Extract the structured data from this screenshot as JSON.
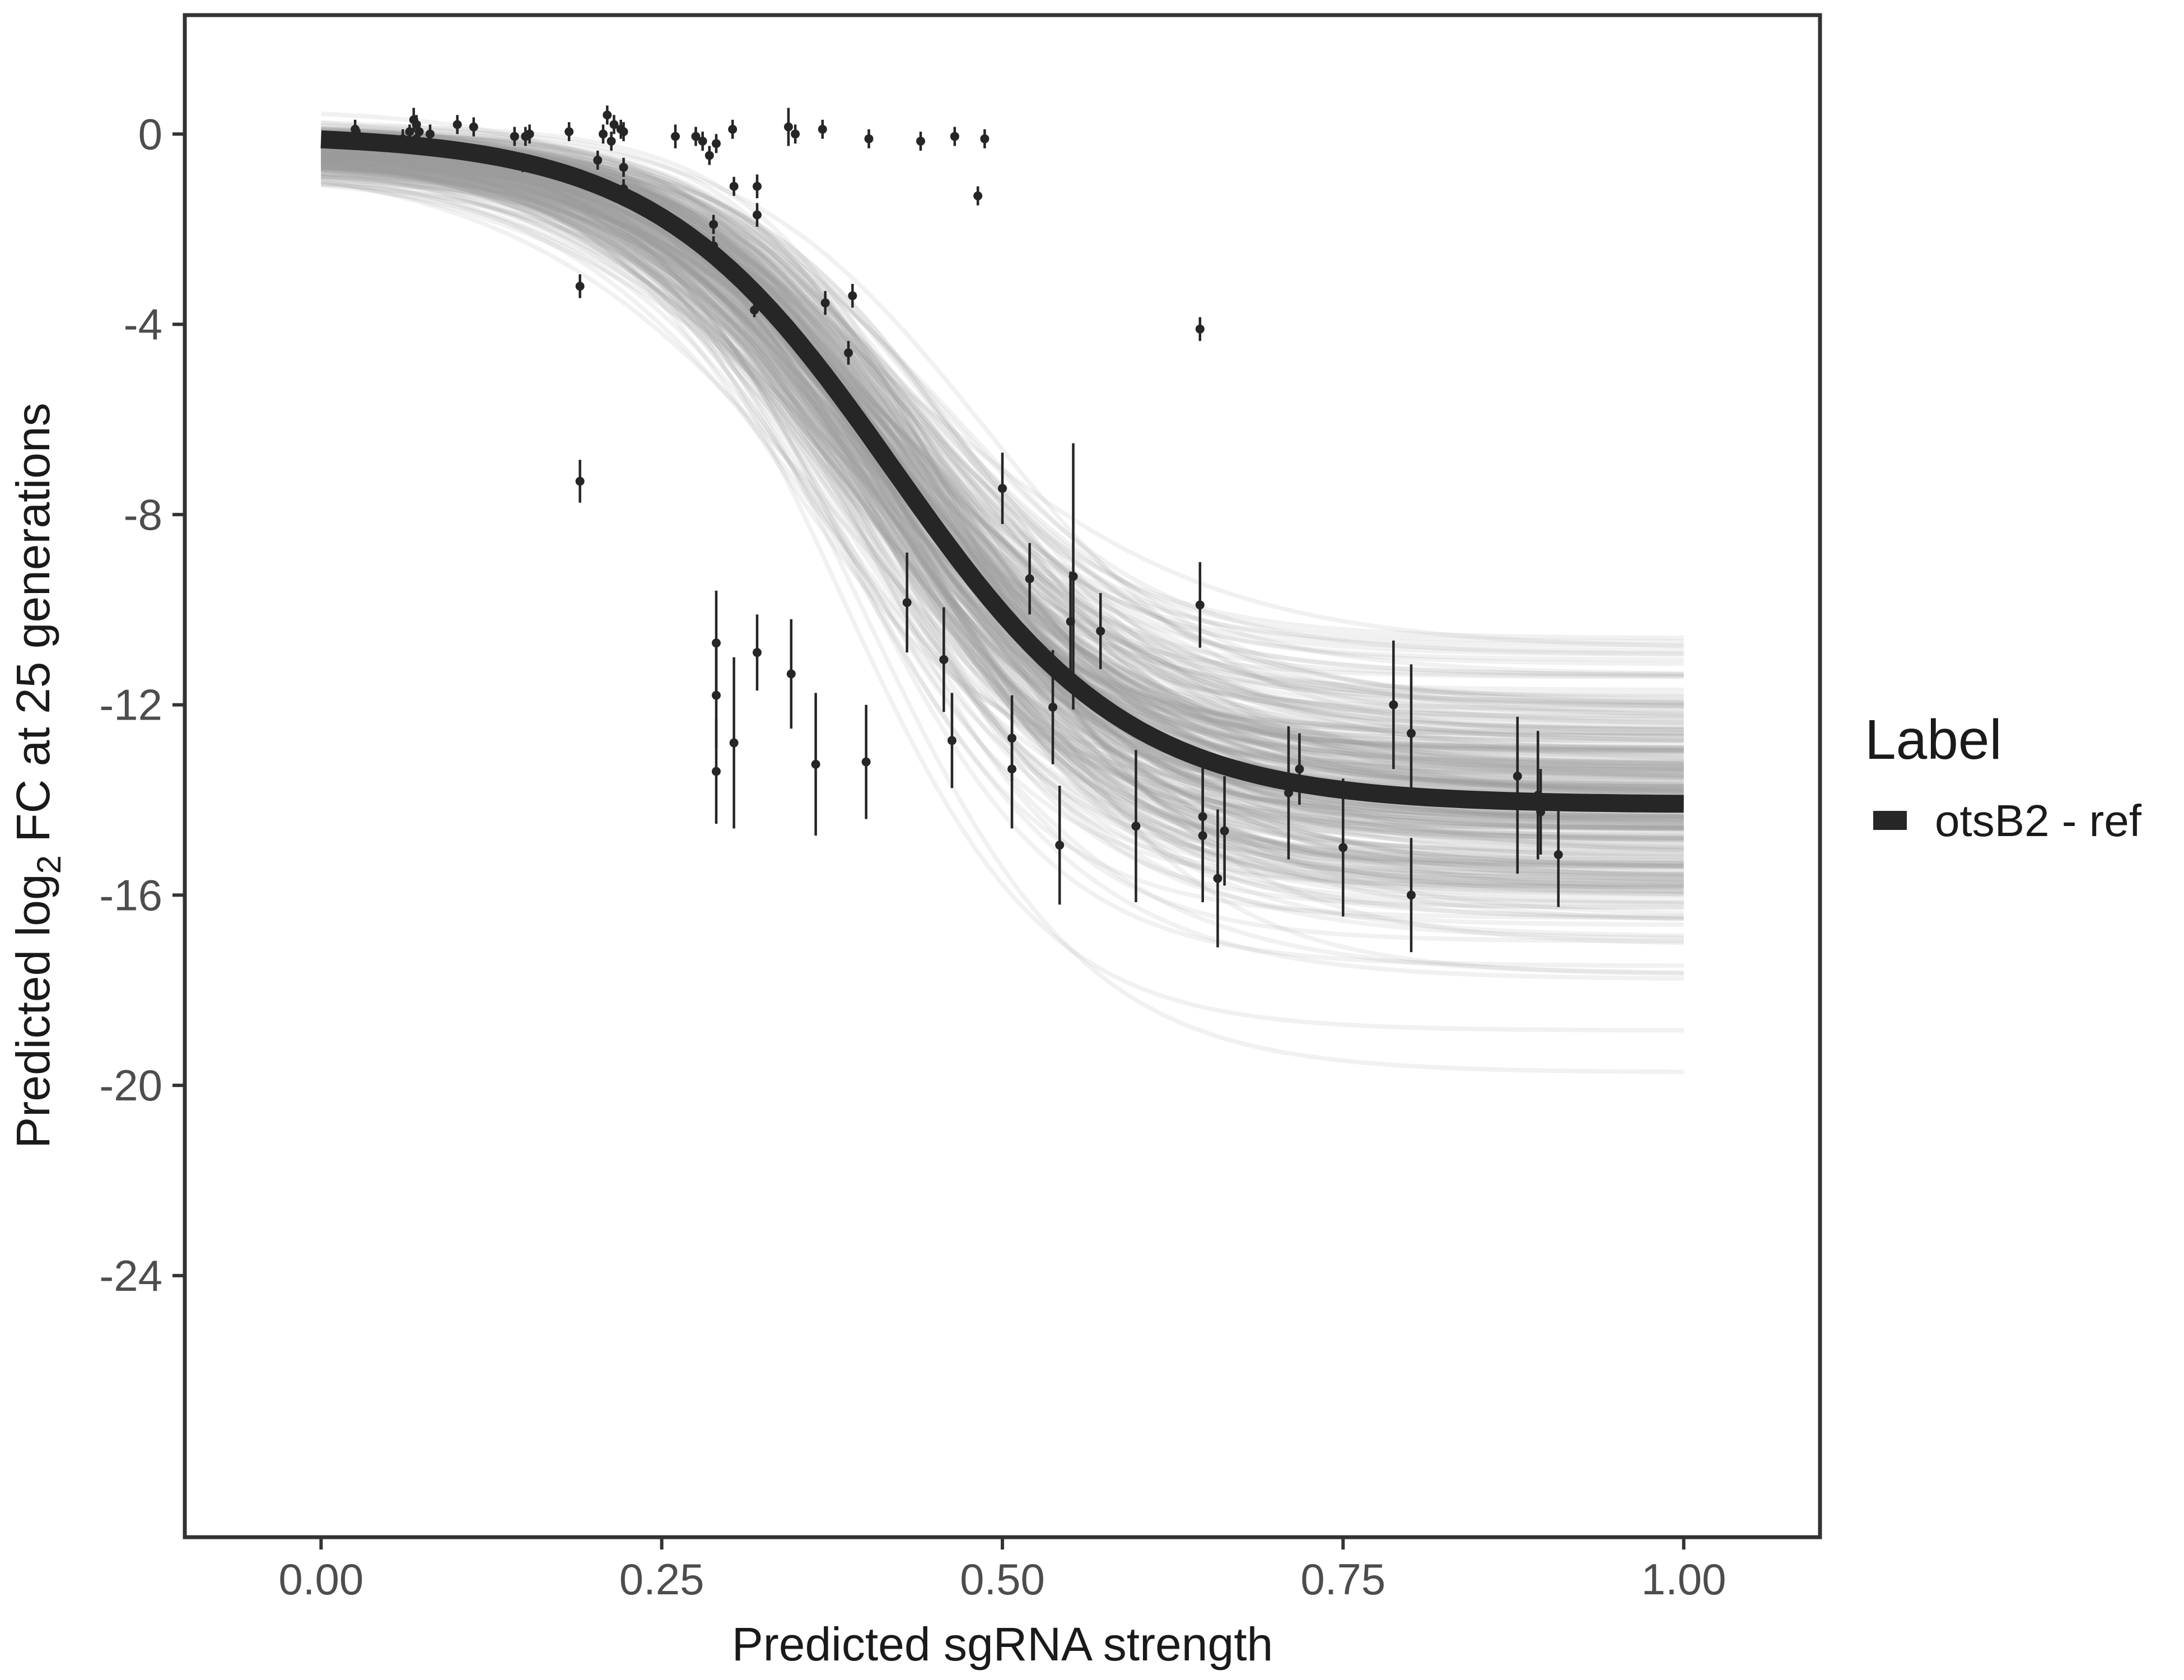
{
  "chart_data": {
    "type": "line",
    "title": "",
    "xlabel": "Predicted sgRNA strength",
    "ylabel_parts": {
      "prefix": "Predicted  log",
      "subscript": "2",
      "suffix": " FC at 25 generations"
    },
    "xlim": [
      -0.1,
      1.1
    ],
    "ylim": [
      -29.5,
      2.5
    ],
    "x_ticks": [
      0,
      0.25,
      0.5,
      0.75,
      1
    ],
    "x_tick_labels": [
      "0.00",
      "0.25",
      "0.50",
      "0.75",
      "1.00"
    ],
    "y_ticks": [
      0,
      -4,
      -8,
      -12,
      -16,
      -20,
      -24
    ],
    "y_tick_labels": [
      "0",
      "-4",
      "-8",
      "-12",
      "-16",
      "-20",
      "-24"
    ],
    "grid": false,
    "legend": {
      "title": "Label",
      "placement": "right",
      "entries": [
        {
          "label": "otsB2 - ref",
          "color": "#262626"
        }
      ]
    },
    "fit_curve": {
      "name": "otsB2 - ref",
      "model": "logistic",
      "upper": 0,
      "lower": -14.1,
      "midpoint": 0.42,
      "slope": 11.5,
      "color": "#262626"
    },
    "posterior_draws": {
      "count": 300,
      "color": "#9e9e9e"
    },
    "points": [
      {
        "x": 0.025,
        "y": 0.1,
        "err": 0.2
      },
      {
        "x": 0.028,
        "y": -0.05,
        "err": 0.15
      },
      {
        "x": 0.06,
        "y": -0.1,
        "err": 0.2
      },
      {
        "x": 0.065,
        "y": 0.05,
        "err": 0.15
      },
      {
        "x": 0.068,
        "y": 0.3,
        "err": 0.25
      },
      {
        "x": 0.07,
        "y": 0.2,
        "err": 0.2
      },
      {
        "x": 0.07,
        "y": -0.1,
        "err": 0.2
      },
      {
        "x": 0.072,
        "y": 0.05,
        "err": 0.2
      },
      {
        "x": 0.08,
        "y": 0.0,
        "err": 0.2
      },
      {
        "x": 0.1,
        "y": 0.2,
        "err": 0.2
      },
      {
        "x": 0.112,
        "y": 0.15,
        "err": 0.2
      },
      {
        "x": 0.142,
        "y": -0.05,
        "err": 0.2
      },
      {
        "x": 0.148,
        "y": -0.6,
        "err": 0.2
      },
      {
        "x": 0.15,
        "y": -0.05,
        "err": 0.2
      },
      {
        "x": 0.153,
        "y": 0.0,
        "err": 0.2
      },
      {
        "x": 0.182,
        "y": 0.05,
        "err": 0.2
      },
      {
        "x": 0.19,
        "y": -3.2,
        "err": 0.25
      },
      {
        "x": 0.19,
        "y": -7.3,
        "err": 0.45
      },
      {
        "x": 0.203,
        "y": -0.55,
        "err": 0.2
      },
      {
        "x": 0.207,
        "y": 0.0,
        "err": 0.2
      },
      {
        "x": 0.21,
        "y": 0.4,
        "err": 0.2
      },
      {
        "x": 0.213,
        "y": -0.15,
        "err": 0.2
      },
      {
        "x": 0.215,
        "y": 0.2,
        "err": 0.2
      },
      {
        "x": 0.22,
        "y": 0.1,
        "err": 0.2
      },
      {
        "x": 0.222,
        "y": 0.05,
        "err": 0.2
      },
      {
        "x": 0.222,
        "y": -0.7,
        "err": 0.2
      },
      {
        "x": 0.222,
        "y": -1.15,
        "err": 0.2
      },
      {
        "x": 0.26,
        "y": -0.05,
        "err": 0.25
      },
      {
        "x": 0.275,
        "y": -0.05,
        "err": 0.2
      },
      {
        "x": 0.28,
        "y": -0.15,
        "err": 0.2
      },
      {
        "x": 0.285,
        "y": -0.45,
        "err": 0.2
      },
      {
        "x": 0.288,
        "y": -1.9,
        "err": 0.2
      },
      {
        "x": 0.288,
        "y": -2.35,
        "err": 0.2
      },
      {
        "x": 0.29,
        "y": -0.2,
        "err": 0.2
      },
      {
        "x": 0.29,
        "y": -10.7,
        "err": 1.1
      },
      {
        "x": 0.29,
        "y": -11.8,
        "err": 1.1
      },
      {
        "x": 0.29,
        "y": -13.4,
        "err": 1.1
      },
      {
        "x": 0.302,
        "y": 0.1,
        "err": 0.2
      },
      {
        "x": 0.303,
        "y": -1.1,
        "err": 0.2
      },
      {
        "x": 0.303,
        "y": -12.8,
        "err": 1.8
      },
      {
        "x": 0.318,
        "y": -3.7,
        "err": 0.15
      },
      {
        "x": 0.32,
        "y": -1.1,
        "err": 0.25
      },
      {
        "x": 0.32,
        "y": -1.7,
        "err": 0.25
      },
      {
        "x": 0.32,
        "y": -10.9,
        "err": 0.8
      },
      {
        "x": 0.343,
        "y": 0.15,
        "err": 0.4
      },
      {
        "x": 0.345,
        "y": -11.35,
        "err": 1.15
      },
      {
        "x": 0.348,
        "y": 0.0,
        "err": 0.2
      },
      {
        "x": 0.363,
        "y": -13.25,
        "err": 1.5
      },
      {
        "x": 0.368,
        "y": 0.1,
        "err": 0.2
      },
      {
        "x": 0.37,
        "y": -3.55,
        "err": 0.25
      },
      {
        "x": 0.387,
        "y": -4.6,
        "err": 0.25
      },
      {
        "x": 0.39,
        "y": -3.4,
        "err": 0.25
      },
      {
        "x": 0.4,
        "y": -13.2,
        "err": 1.2
      },
      {
        "x": 0.402,
        "y": -0.1,
        "err": 0.2
      },
      {
        "x": 0.43,
        "y": -9.85,
        "err": 1.05
      },
      {
        "x": 0.44,
        "y": -0.15,
        "err": 0.2
      },
      {
        "x": 0.457,
        "y": -11.05,
        "err": 1.1
      },
      {
        "x": 0.463,
        "y": -12.75,
        "err": 1.0
      },
      {
        "x": 0.465,
        "y": -0.05,
        "err": 0.2
      },
      {
        "x": 0.482,
        "y": -1.3,
        "err": 0.2
      },
      {
        "x": 0.487,
        "y": -0.1,
        "err": 0.2
      },
      {
        "x": 0.5,
        "y": -7.45,
        "err": 0.75
      },
      {
        "x": 0.507,
        "y": -12.7,
        "err": 0.9
      },
      {
        "x": 0.507,
        "y": -13.35,
        "err": 1.25
      },
      {
        "x": 0.52,
        "y": -9.35,
        "err": 0.75
      },
      {
        "x": 0.537,
        "y": -12.05,
        "err": 1.2
      },
      {
        "x": 0.542,
        "y": -14.95,
        "err": 1.25
      },
      {
        "x": 0.55,
        "y": -10.25,
        "err": 1.05
      },
      {
        "x": 0.552,
        "y": -9.3,
        "err": 2.8
      },
      {
        "x": 0.572,
        "y": -10.45,
        "err": 0.8
      },
      {
        "x": 0.598,
        "y": -14.55,
        "err": 1.6
      },
      {
        "x": 0.645,
        "y": -4.1,
        "err": 0.25
      },
      {
        "x": 0.645,
        "y": -9.9,
        "err": 0.9
      },
      {
        "x": 0.647,
        "y": -14.35,
        "err": 1.2
      },
      {
        "x": 0.647,
        "y": -14.75,
        "err": 1.4
      },
      {
        "x": 0.658,
        "y": -15.65,
        "err": 1.45
      },
      {
        "x": 0.663,
        "y": -14.65,
        "err": 1.15
      },
      {
        "x": 0.71,
        "y": -13.85,
        "err": 1.4
      },
      {
        "x": 0.718,
        "y": -13.35,
        "err": 0.75
      },
      {
        "x": 0.75,
        "y": -15.0,
        "err": 1.45
      },
      {
        "x": 0.787,
        "y": -12.0,
        "err": 1.35
      },
      {
        "x": 0.8,
        "y": -12.6,
        "err": 1.45
      },
      {
        "x": 0.8,
        "y": -16.0,
        "err": 1.2
      },
      {
        "x": 0.878,
        "y": -13.5,
        "err": 1.25
      },
      {
        "x": 0.878,
        "y": -14.1,
        "err": 1.45
      },
      {
        "x": 0.893,
        "y": -13.9,
        "err": 1.35
      },
      {
        "x": 0.895,
        "y": -14.25,
        "err": 0.9
      },
      {
        "x": 0.908,
        "y": -15.15,
        "err": 1.1
      }
    ]
  }
}
